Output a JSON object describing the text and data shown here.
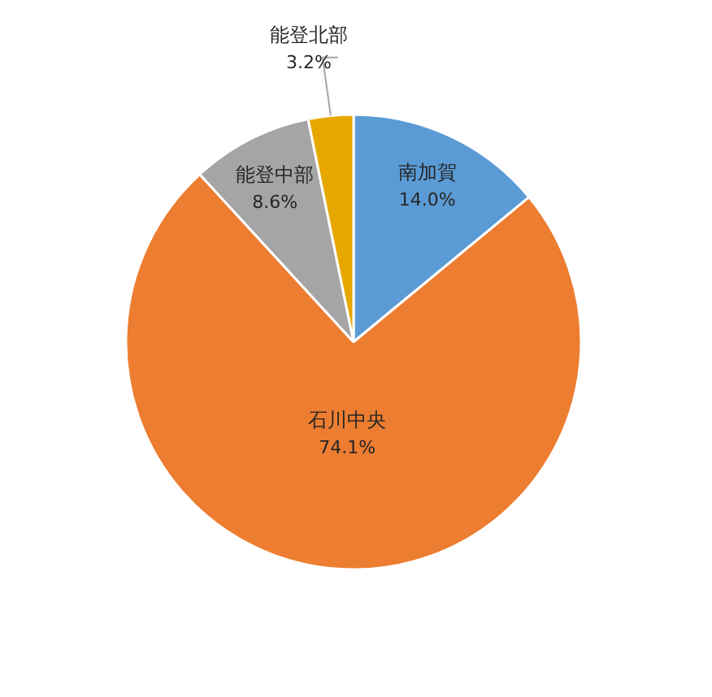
{
  "chart_data": {
    "type": "pie",
    "categories": [
      "南加賀",
      "石川中央",
      "能登中部",
      "能登北部"
    ],
    "values": [
      14.0,
      74.1,
      8.6,
      3.2
    ],
    "colors": [
      "#5b9bd5",
      "#ed7d31",
      "#a5a5a5",
      "#e6a800"
    ],
    "value_labels": [
      "14.0%",
      "74.1%",
      "8.6%",
      "3.2%"
    ]
  }
}
